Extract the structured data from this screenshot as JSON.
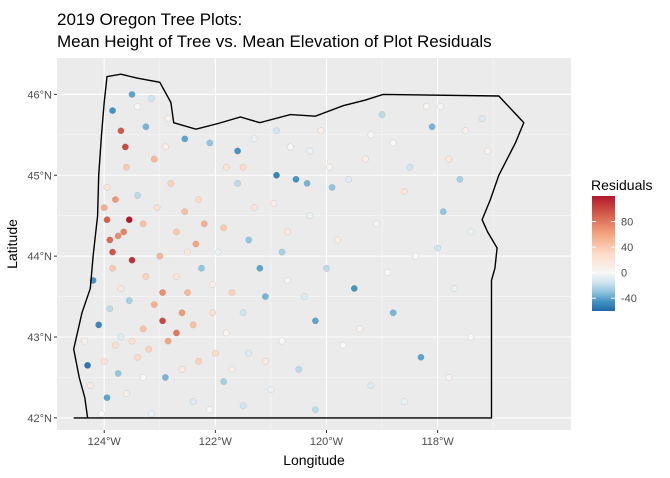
{
  "chart_data": {
    "type": "scatter",
    "title": [
      "2019 Oregon Tree Plots:",
      "Mean Height of Tree vs. Mean Elevation of Plot Residuals"
    ],
    "xlabel": "Longitude",
    "ylabel": "Latitude",
    "xlim": [
      -124.85,
      -115.6
    ],
    "ylim": [
      41.85,
      46.45
    ],
    "x_ticks": [
      -124,
      -122,
      -120,
      -118
    ],
    "x_tick_labels": [
      "124°W",
      "122°W",
      "120°W",
      "118°W"
    ],
    "y_ticks": [
      42,
      43,
      44,
      45,
      46
    ],
    "y_tick_labels": [
      "42°N",
      "43°N",
      "44°N",
      "45°N",
      "46°N"
    ],
    "grid": true,
    "legend": {
      "title": "Residuals",
      "placement": "right",
      "ticks": [
        80,
        40,
        0,
        -40
      ],
      "tick_labels": [
        "80",
        "40",
        "0",
        "-40"
      ],
      "range": [
        -60,
        120
      ],
      "colors_low_to_high": [
        "#2166ac",
        "#4393c3",
        "#92c5de",
        "#d1e5f0",
        "#f7f7f7",
        "#fddbc7",
        "#f4a582",
        "#d6604d",
        "#b2182b"
      ]
    },
    "outline": [
      [
        -124.55,
        42.0
      ],
      [
        -120.0,
        42.0
      ],
      [
        -117.03,
        42.0
      ],
      [
        -117.03,
        43.7
      ],
      [
        -116.97,
        43.85
      ],
      [
        -116.93,
        44.1
      ],
      [
        -117.1,
        44.3
      ],
      [
        -117.2,
        44.45
      ],
      [
        -117.05,
        44.7
      ],
      [
        -116.9,
        45.0
      ],
      [
        -116.6,
        45.4
      ],
      [
        -116.45,
        45.65
      ],
      [
        -116.9,
        45.98
      ],
      [
        -118.98,
        46.0
      ],
      [
        -119.3,
        45.93
      ],
      [
        -119.7,
        45.86
      ],
      [
        -120.2,
        45.73
      ],
      [
        -120.65,
        45.75
      ],
      [
        -121.2,
        45.65
      ],
      [
        -121.55,
        45.72
      ],
      [
        -121.95,
        45.64
      ],
      [
        -122.35,
        45.57
      ],
      [
        -122.75,
        45.65
      ],
      [
        -122.8,
        45.9
      ],
      [
        -123.0,
        46.15
      ],
      [
        -123.4,
        46.2
      ],
      [
        -123.7,
        46.25
      ],
      [
        -123.95,
        46.22
      ],
      [
        -124.0,
        45.9
      ],
      [
        -124.05,
        45.5
      ],
      [
        -124.1,
        45.0
      ],
      [
        -124.12,
        44.5
      ],
      [
        -124.2,
        44.0
      ],
      [
        -124.25,
        43.6
      ],
      [
        -124.4,
        43.3
      ],
      [
        -124.55,
        42.85
      ],
      [
        -124.45,
        42.5
      ],
      [
        -124.35,
        42.25
      ],
      [
        -124.3,
        42.0
      ]
    ],
    "points": [
      [
        -123.7,
        45.55,
        92
      ],
      [
        -123.62,
        45.35,
        100
      ],
      [
        -123.55,
        44.45,
        130
      ],
      [
        -123.5,
        43.95,
        110
      ],
      [
        -123.95,
        44.45,
        90
      ],
      [
        -123.9,
        44.2,
        85
      ],
      [
        -123.85,
        44.05,
        95
      ],
      [
        -123.75,
        44.25,
        70
      ],
      [
        -123.65,
        44.3,
        75
      ],
      [
        -122.95,
        43.2,
        100
      ],
      [
        -122.7,
        43.05,
        80
      ],
      [
        -122.6,
        43.3,
        65
      ],
      [
        -122.35,
        44.15,
        60
      ],
      [
        -122.2,
        44.4,
        55
      ],
      [
        -122.5,
        43.55,
        50
      ],
      [
        -123.3,
        43.1,
        45
      ],
      [
        -121.85,
        44.35,
        40
      ],
      [
        -121.7,
        43.55,
        35
      ],
      [
        -122.0,
        42.8,
        30
      ],
      [
        -123.8,
        42.9,
        25
      ],
      [
        -123.1,
        45.2,
        50
      ],
      [
        -122.8,
        44.9,
        35
      ],
      [
        -121.5,
        45.1,
        30
      ],
      [
        -121.3,
        44.6,
        20
      ],
      [
        -120.7,
        44.3,
        15
      ],
      [
        -119.8,
        44.2,
        10
      ],
      [
        -118.6,
        44.8,
        20
      ],
      [
        -117.8,
        45.2,
        15
      ],
      [
        -117.5,
        45.55,
        10
      ],
      [
        -118.2,
        45.85,
        5
      ],
      [
        -119.2,
        45.5,
        0
      ],
      [
        -120.3,
        45.3,
        -5
      ],
      [
        -123.85,
        45.8,
        -45
      ],
      [
        -123.5,
        46.0,
        -40
      ],
      [
        -124.1,
        43.15,
        -50
      ],
      [
        -124.3,
        42.65,
        -55
      ],
      [
        -124.2,
        43.7,
        -45
      ],
      [
        -123.95,
        42.25,
        -40
      ],
      [
        -122.9,
        42.5,
        -35
      ],
      [
        -121.2,
        43.85,
        -40
      ],
      [
        -120.9,
        45.0,
        -50
      ],
      [
        -120.55,
        44.95,
        -45
      ],
      [
        -120.35,
        44.9,
        -35
      ],
      [
        -119.9,
        44.85,
        -30
      ],
      [
        -120.8,
        44.05,
        -25
      ],
      [
        -121.4,
        44.2,
        -30
      ],
      [
        -121.1,
        43.5,
        -35
      ],
      [
        -120.2,
        43.2,
        -40
      ],
      [
        -119.5,
        43.6,
        -45
      ],
      [
        -118.8,
        43.3,
        -35
      ],
      [
        -118.3,
        42.75,
        -40
      ],
      [
        -117.9,
        44.55,
        -30
      ],
      [
        -117.6,
        44.95,
        -25
      ],
      [
        -118.1,
        45.6,
        -35
      ],
      [
        -119.0,
        45.75,
        -20
      ],
      [
        -121.6,
        45.3,
        -45
      ],
      [
        -122.1,
        45.4,
        -30
      ],
      [
        -122.55,
        45.45,
        -40
      ],
      [
        -123.25,
        45.6,
        -35
      ],
      [
        -123.4,
        44.75,
        -20
      ],
      [
        -123.55,
        43.45,
        -25
      ],
      [
        -122.25,
        43.85,
        -30
      ],
      [
        -120.5,
        42.6,
        -20
      ],
      [
        -121.85,
        42.45,
        -25
      ],
      [
        -120.2,
        42.1,
        -20
      ],
      [
        -121.5,
        42.15,
        -15
      ],
      [
        -122.4,
        42.2,
        -10
      ],
      [
        -123.15,
        42.05,
        -5
      ],
      [
        -123.6,
        42.3,
        10
      ],
      [
        -124.0,
        42.7,
        20
      ],
      [
        -123.4,
        42.75,
        30
      ],
      [
        -122.85,
        42.95,
        60
      ],
      [
        -122.4,
        43.15,
        45
      ],
      [
        -122.05,
        43.3,
        25
      ],
      [
        -121.8,
        43.05,
        5
      ],
      [
        -121.4,
        42.8,
        -10
      ],
      [
        -120.8,
        42.95,
        0
      ],
      [
        -120.4,
        43.5,
        -10
      ],
      [
        -119.7,
        42.9,
        0
      ],
      [
        -119.2,
        42.4,
        -10
      ],
      [
        -118.6,
        42.2,
        -5
      ],
      [
        -117.8,
        42.5,
        5
      ],
      [
        -117.4,
        43.0,
        0
      ],
      [
        -117.7,
        43.6,
        -5
      ],
      [
        -118.4,
        44.0,
        0
      ],
      [
        -119.1,
        44.4,
        5
      ],
      [
        -119.6,
        44.95,
        -10
      ],
      [
        -120.1,
        45.55,
        10
      ],
      [
        -120.9,
        45.55,
        -15
      ],
      [
        -121.8,
        45.1,
        20
      ],
      [
        -122.3,
        44.7,
        30
      ],
      [
        -122.7,
        44.3,
        40
      ],
      [
        -123.0,
        44.0,
        50
      ],
      [
        -123.25,
        43.75,
        35
      ],
      [
        -123.7,
        43.6,
        15
      ],
      [
        -123.9,
        43.35,
        -20
      ],
      [
        -123.7,
        43.0,
        -10
      ],
      [
        -123.3,
        42.5,
        0
      ],
      [
        -122.6,
        42.6,
        15
      ],
      [
        -122.1,
        42.1,
        0
      ],
      [
        -121.0,
        42.35,
        -5
      ],
      [
        -120.7,
        43.7,
        5
      ],
      [
        -121.6,
        44.9,
        -20
      ],
      [
        -122.9,
        45.35,
        10
      ],
      [
        -123.6,
        45.1,
        40
      ],
      [
        -123.95,
        44.85,
        20
      ],
      [
        -124.0,
        44.6,
        55
      ],
      [
        -123.8,
        44.7,
        65
      ],
      [
        -123.3,
        44.4,
        45
      ],
      [
        -123.05,
        44.6,
        25
      ],
      [
        -122.5,
        44.05,
        15
      ],
      [
        -122.05,
        43.65,
        10
      ],
      [
        -121.95,
        44.05,
        -5
      ],
      [
        -121.5,
        43.3,
        -15
      ],
      [
        -122.7,
        43.75,
        20
      ],
      [
        -123.1,
        43.4,
        55
      ],
      [
        -122.3,
        42.7,
        35
      ],
      [
        -121.7,
        42.6,
        10
      ],
      [
        -123.5,
        42.95,
        25
      ],
      [
        -124.05,
        42.05,
        0
      ],
      [
        -124.25,
        42.4,
        15
      ],
      [
        -124.35,
        42.95,
        5
      ],
      [
        -123.85,
        43.85,
        40
      ],
      [
        -123.4,
        45.85,
        0
      ],
      [
        -123.15,
        45.95,
        -15
      ],
      [
        -122.85,
        45.7,
        5
      ],
      [
        -121.3,
        45.45,
        -5
      ],
      [
        -120.65,
        45.35,
        0
      ],
      [
        -119.95,
        45.1,
        5
      ],
      [
        -119.3,
        45.2,
        10
      ],
      [
        -118.8,
        45.4,
        0
      ],
      [
        -118.5,
        45.1,
        -15
      ],
      [
        -117.95,
        45.85,
        0
      ],
      [
        -117.2,
        45.7,
        -10
      ],
      [
        -117.1,
        45.3,
        5
      ],
      [
        -117.4,
        44.3,
        -5
      ],
      [
        -118.0,
        44.1,
        -15
      ],
      [
        -118.9,
        43.8,
        0
      ],
      [
        -119.4,
        43.1,
        5
      ],
      [
        -120.0,
        43.85,
        -20
      ],
      [
        -120.3,
        44.5,
        -5
      ],
      [
        -120.95,
        44.65,
        10
      ],
      [
        -121.1,
        42.7,
        15
      ],
      [
        -122.55,
        44.55,
        45
      ],
      [
        -122.95,
        43.55,
        70
      ],
      [
        -123.2,
        42.85,
        35
      ],
      [
        -123.75,
        42.55,
        -30
      ]
    ]
  }
}
